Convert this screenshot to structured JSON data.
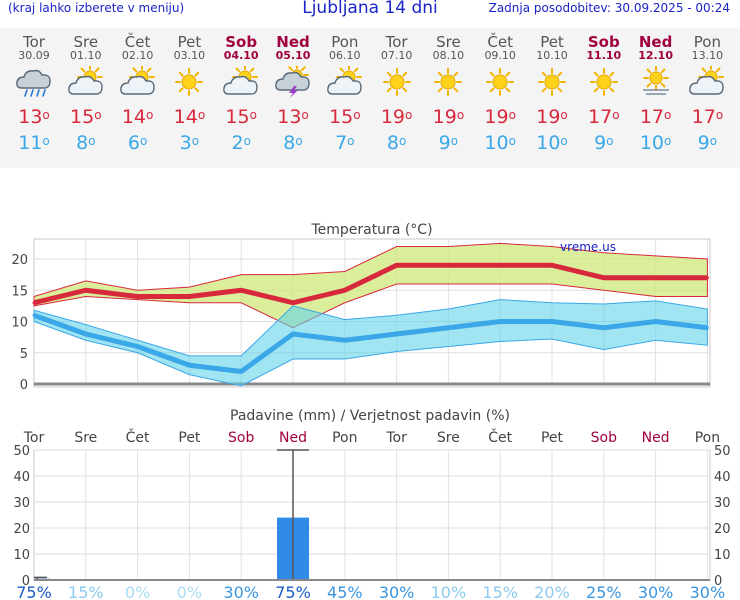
{
  "header": {
    "hint": "(kraj lahko izberete v meniju)",
    "title": "Ljubljana 14 dni",
    "updated": "Zadnja posodobitev: 30.09.2025 - 00:24"
  },
  "days": [
    {
      "name": "Tor",
      "date": "30.09",
      "weekend": false,
      "icon": "cloud-rain-icon",
      "tmax": "13",
      "tmin": "11"
    },
    {
      "name": "Sre",
      "date": "01.10",
      "weekend": false,
      "icon": "partly-cloudy-icon",
      "tmax": "15",
      "tmin": "8"
    },
    {
      "name": "Čet",
      "date": "02.10",
      "weekend": false,
      "icon": "partly-cloudy-icon",
      "tmax": "14",
      "tmin": "6"
    },
    {
      "name": "Pet",
      "date": "03.10",
      "weekend": false,
      "icon": "sun-icon",
      "tmax": "14",
      "tmin": "3"
    },
    {
      "name": "Sob",
      "date": "04.10",
      "weekend": true,
      "icon": "partly-cloudy-icon",
      "tmax": "15",
      "tmin": "2"
    },
    {
      "name": "Ned",
      "date": "05.10",
      "weekend": true,
      "icon": "thunderstorm-icon",
      "tmax": "13",
      "tmin": "8"
    },
    {
      "name": "Pon",
      "date": "06.10",
      "weekend": false,
      "icon": "partly-cloudy-icon",
      "tmax": "15",
      "tmin": "7"
    },
    {
      "name": "Tor",
      "date": "07.10",
      "weekend": false,
      "icon": "sun-icon",
      "tmax": "19",
      "tmin": "8"
    },
    {
      "name": "Sre",
      "date": "08.10",
      "weekend": false,
      "icon": "sun-icon",
      "tmax": "19",
      "tmin": "9"
    },
    {
      "name": "Čet",
      "date": "09.10",
      "weekend": false,
      "icon": "sun-icon",
      "tmax": "19",
      "tmin": "10"
    },
    {
      "name": "Pet",
      "date": "10.10",
      "weekend": false,
      "icon": "sun-icon",
      "tmax": "19",
      "tmin": "10"
    },
    {
      "name": "Sob",
      "date": "11.10",
      "weekend": true,
      "icon": "sun-icon",
      "tmax": "17",
      "tmin": "9"
    },
    {
      "name": "Ned",
      "date": "12.10",
      "weekend": true,
      "icon": "sun-haze-icon",
      "tmax": "17",
      "tmin": "10"
    },
    {
      "name": "Pon",
      "date": "13.10",
      "weekend": false,
      "icon": "partly-cloudy-icon",
      "tmax": "17",
      "tmin": "9"
    }
  ],
  "colors": {
    "max": "#d8283c",
    "min": "#3aa8e8",
    "weekend": "#a00040",
    "bar": "#2f8ae8"
  },
  "chart_data": [
    {
      "type": "line",
      "title": "Temperatura (°C)",
      "watermark": "vreme.us",
      "categories": [
        "Tor",
        "Sre",
        "Čet",
        "Pet",
        "Sob",
        "Ned",
        "Pon",
        "Tor",
        "Sre",
        "Čet",
        "Pet",
        "Sob",
        "Ned",
        "Pon"
      ],
      "ylim": [
        -1,
        22
      ],
      "yticks": [
        0,
        5,
        10,
        15,
        20
      ],
      "grid": true,
      "series": [
        {
          "values": [
            13,
            15,
            14,
            14,
            15,
            13,
            15,
            19,
            19,
            19,
            19,
            17,
            17,
            17
          ],
          "range_low": [
            12.5,
            14,
            13.5,
            13,
            13,
            9,
            13,
            16,
            16,
            16,
            16,
            15,
            14,
            14
          ],
          "range_high": [
            14,
            16.5,
            15,
            15.5,
            17.5,
            17.5,
            18,
            22,
            22,
            22.5,
            22,
            21,
            20.5,
            20
          ]
        },
        {
          "values": [
            11,
            8,
            6,
            3,
            2,
            8,
            7,
            8,
            9,
            10,
            10,
            9,
            10,
            9
          ],
          "range_low": [
            10,
            7,
            5,
            1.5,
            -0.3,
            4,
            4,
            5.2,
            6,
            6.8,
            7.2,
            5.5,
            7,
            6.2
          ],
          "range_high": [
            11.8,
            9.5,
            7,
            4.5,
            4.5,
            12.5,
            10.3,
            11,
            12,
            13.5,
            13,
            12.8,
            13.3,
            12
          ]
        }
      ]
    },
    {
      "type": "bar",
      "title": "Padavine (mm) / Verjetnost padavin (%)",
      "categories": [
        "Tor",
        "Sre",
        "Čet",
        "Pet",
        "Sob",
        "Ned",
        "Pon",
        "Tor",
        "Sre",
        "Čet",
        "Pet",
        "Sob",
        "Ned",
        "Pon"
      ],
      "weekend": [
        false,
        false,
        false,
        false,
        true,
        true,
        false,
        false,
        false,
        false,
        false,
        true,
        true,
        false
      ],
      "ylim": [
        0,
        50
      ],
      "yticks": [
        0,
        10,
        20,
        30,
        40,
        50
      ],
      "values": [
        0.5,
        0,
        0,
        0,
        0,
        24,
        0,
        0,
        0,
        0,
        0,
        0,
        0,
        0
      ],
      "error_high": [
        1,
        0,
        0,
        0,
        0,
        50,
        0,
        0,
        0,
        0,
        0,
        0,
        0,
        0
      ],
      "probability": [
        "75%",
        "15%",
        "0%",
        "0%",
        "30%",
        "75%",
        "45%",
        "30%",
        "10%",
        "15%",
        "20%",
        "25%",
        "30%",
        "30%"
      ]
    }
  ]
}
